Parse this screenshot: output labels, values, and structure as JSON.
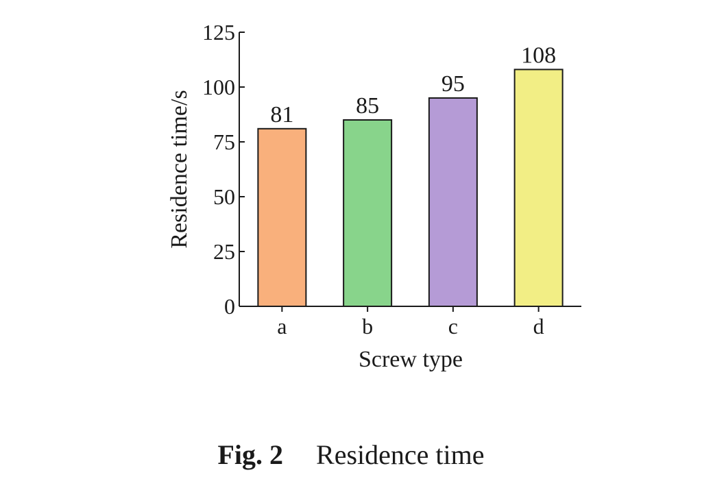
{
  "chart_data": {
    "type": "bar",
    "categories": [
      "a",
      "b",
      "c",
      "d"
    ],
    "values": [
      81,
      85,
      95,
      108
    ],
    "data_labels": [
      "81",
      "85",
      "95",
      "108"
    ],
    "colors": [
      "#f9b07c",
      "#88d48b",
      "#b59bd6",
      "#f2ee85"
    ],
    "xlabel": "Screw type",
    "ylabel": "Residence time/s",
    "ylim": [
      0,
      125
    ],
    "yticks": [
      0,
      25,
      50,
      75,
      100,
      125
    ],
    "grid": false,
    "legend": "none"
  },
  "caption": {
    "number": "Fig. 2",
    "text": "Residence time"
  }
}
